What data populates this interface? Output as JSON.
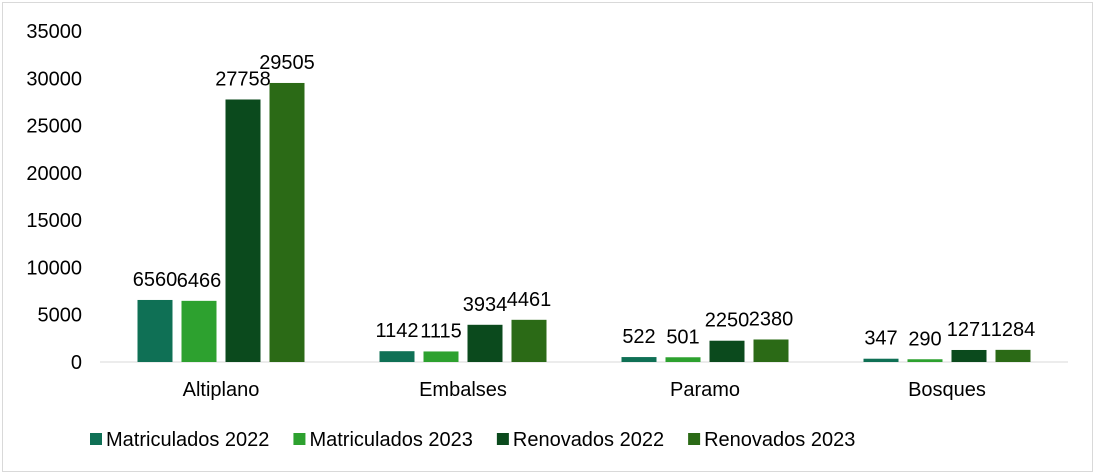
{
  "chart_data": {
    "type": "bar",
    "categories": [
      "Altiplano",
      "Embalses",
      "Paramo",
      "Bosques"
    ],
    "series": [
      {
        "name": "Matriculados 2022",
        "color": "#0f7055",
        "values": [
          6560,
          1142,
          522,
          347
        ]
      },
      {
        "name": "Matriculados 2023",
        "color": "#2da12f",
        "values": [
          6466,
          1115,
          501,
          290
        ]
      },
      {
        "name": "Renovados 2022",
        "color": "#0b4a1d",
        "values": [
          27758,
          3934,
          2250,
          1271
        ]
      },
      {
        "name": "Renovados 2023",
        "color": "#2b6a16",
        "values": [
          29505,
          4461,
          2380,
          1284
        ]
      }
    ],
    "ylim": [
      0,
      35000
    ],
    "yticks": [
      0,
      5000,
      10000,
      15000,
      20000,
      25000,
      30000,
      35000
    ],
    "grid": false,
    "legend_position": "bottom",
    "title": "",
    "xlabel": "",
    "ylabel": ""
  }
}
